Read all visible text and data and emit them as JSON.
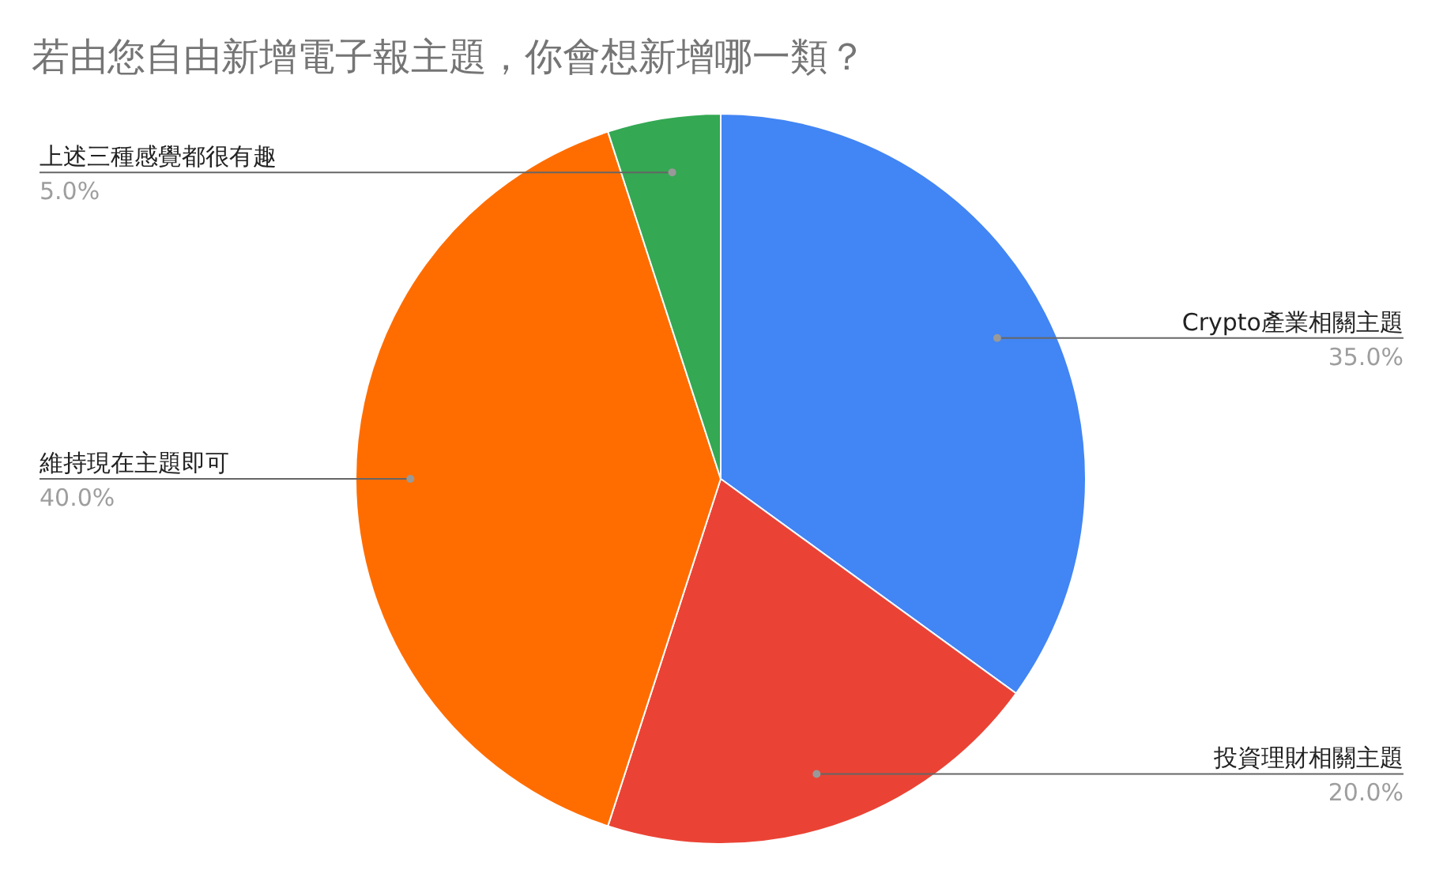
{
  "chart_data": {
    "type": "pie",
    "title": "若由您自由新增電子報主題，你會想新增哪一類？",
    "categories": [
      "Crypto產業相關主題",
      "投資理財相關主題",
      "維持現在主題即可",
      "上述三種感覺都很有趣"
    ],
    "values": [
      35,
      20,
      40,
      5
    ],
    "value_labels": [
      "35.0%",
      "20.0%",
      "40.0%",
      "5.0%"
    ],
    "colors": [
      "#4285f4",
      "#ea4335",
      "#ff6d01",
      "#34a853"
    ]
  }
}
